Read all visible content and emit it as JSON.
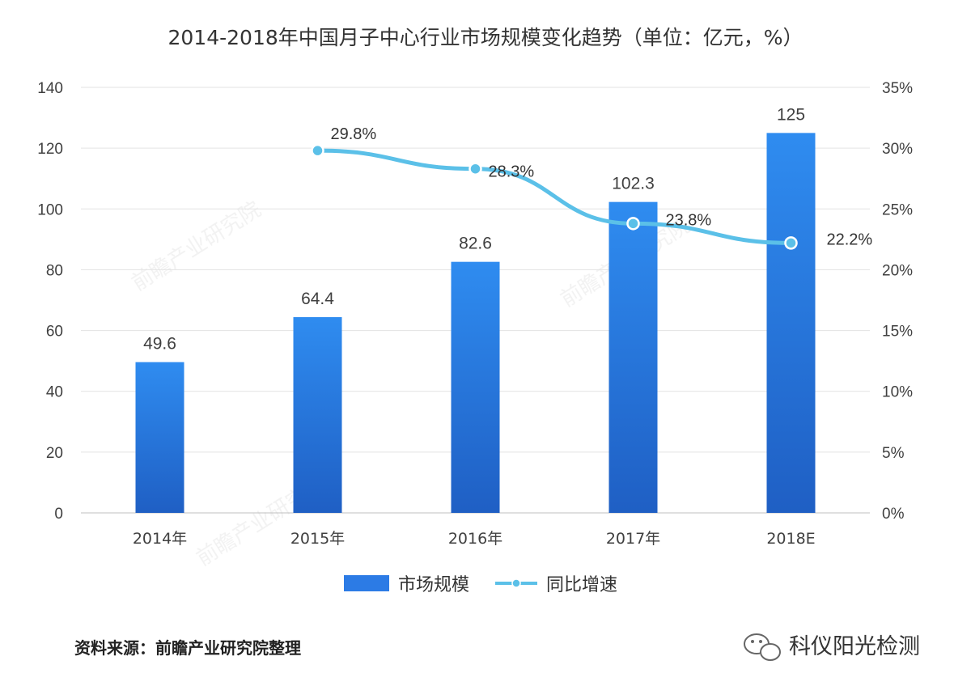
{
  "chart_data": {
    "type": "bar",
    "title": "2014-2018年中国月子中心行业市场规模变化趋势（单位：亿元，%）",
    "categories": [
      "2014年",
      "2015年",
      "2016年",
      "2017年",
      "2018E"
    ],
    "series": [
      {
        "name": "市场规模",
        "type": "bar",
        "axis": "left",
        "values": [
          49.6,
          64.4,
          82.6,
          102.3,
          125
        ],
        "labels": [
          "49.6",
          "64.4",
          "82.6",
          "102.3",
          "125"
        ],
        "color": "#2c7be5"
      },
      {
        "name": "同比增速",
        "type": "line",
        "axis": "right",
        "values": [
          null,
          29.8,
          28.3,
          23.8,
          22.2
        ],
        "labels": [
          "",
          "29.8%",
          "28.3%",
          "23.8%",
          "22.2%"
        ],
        "color": "#5bc0e8"
      }
    ],
    "y_left": {
      "ylim": [
        0,
        140
      ],
      "ticks": [
        "0",
        "20",
        "40",
        "60",
        "80",
        "100",
        "120",
        "140"
      ]
    },
    "y_right": {
      "ylim": [
        0,
        35
      ],
      "ticks": [
        "0%",
        "5%",
        "10%",
        "15%",
        "20%",
        "25%",
        "30%",
        "35%"
      ]
    },
    "grid": true,
    "legend": "bottom"
  },
  "footer": {
    "source": "资料来源：前瞻产业研究院整理",
    "brand": "科仪阳光检测",
    "brand_icon": "wechat-icon"
  }
}
